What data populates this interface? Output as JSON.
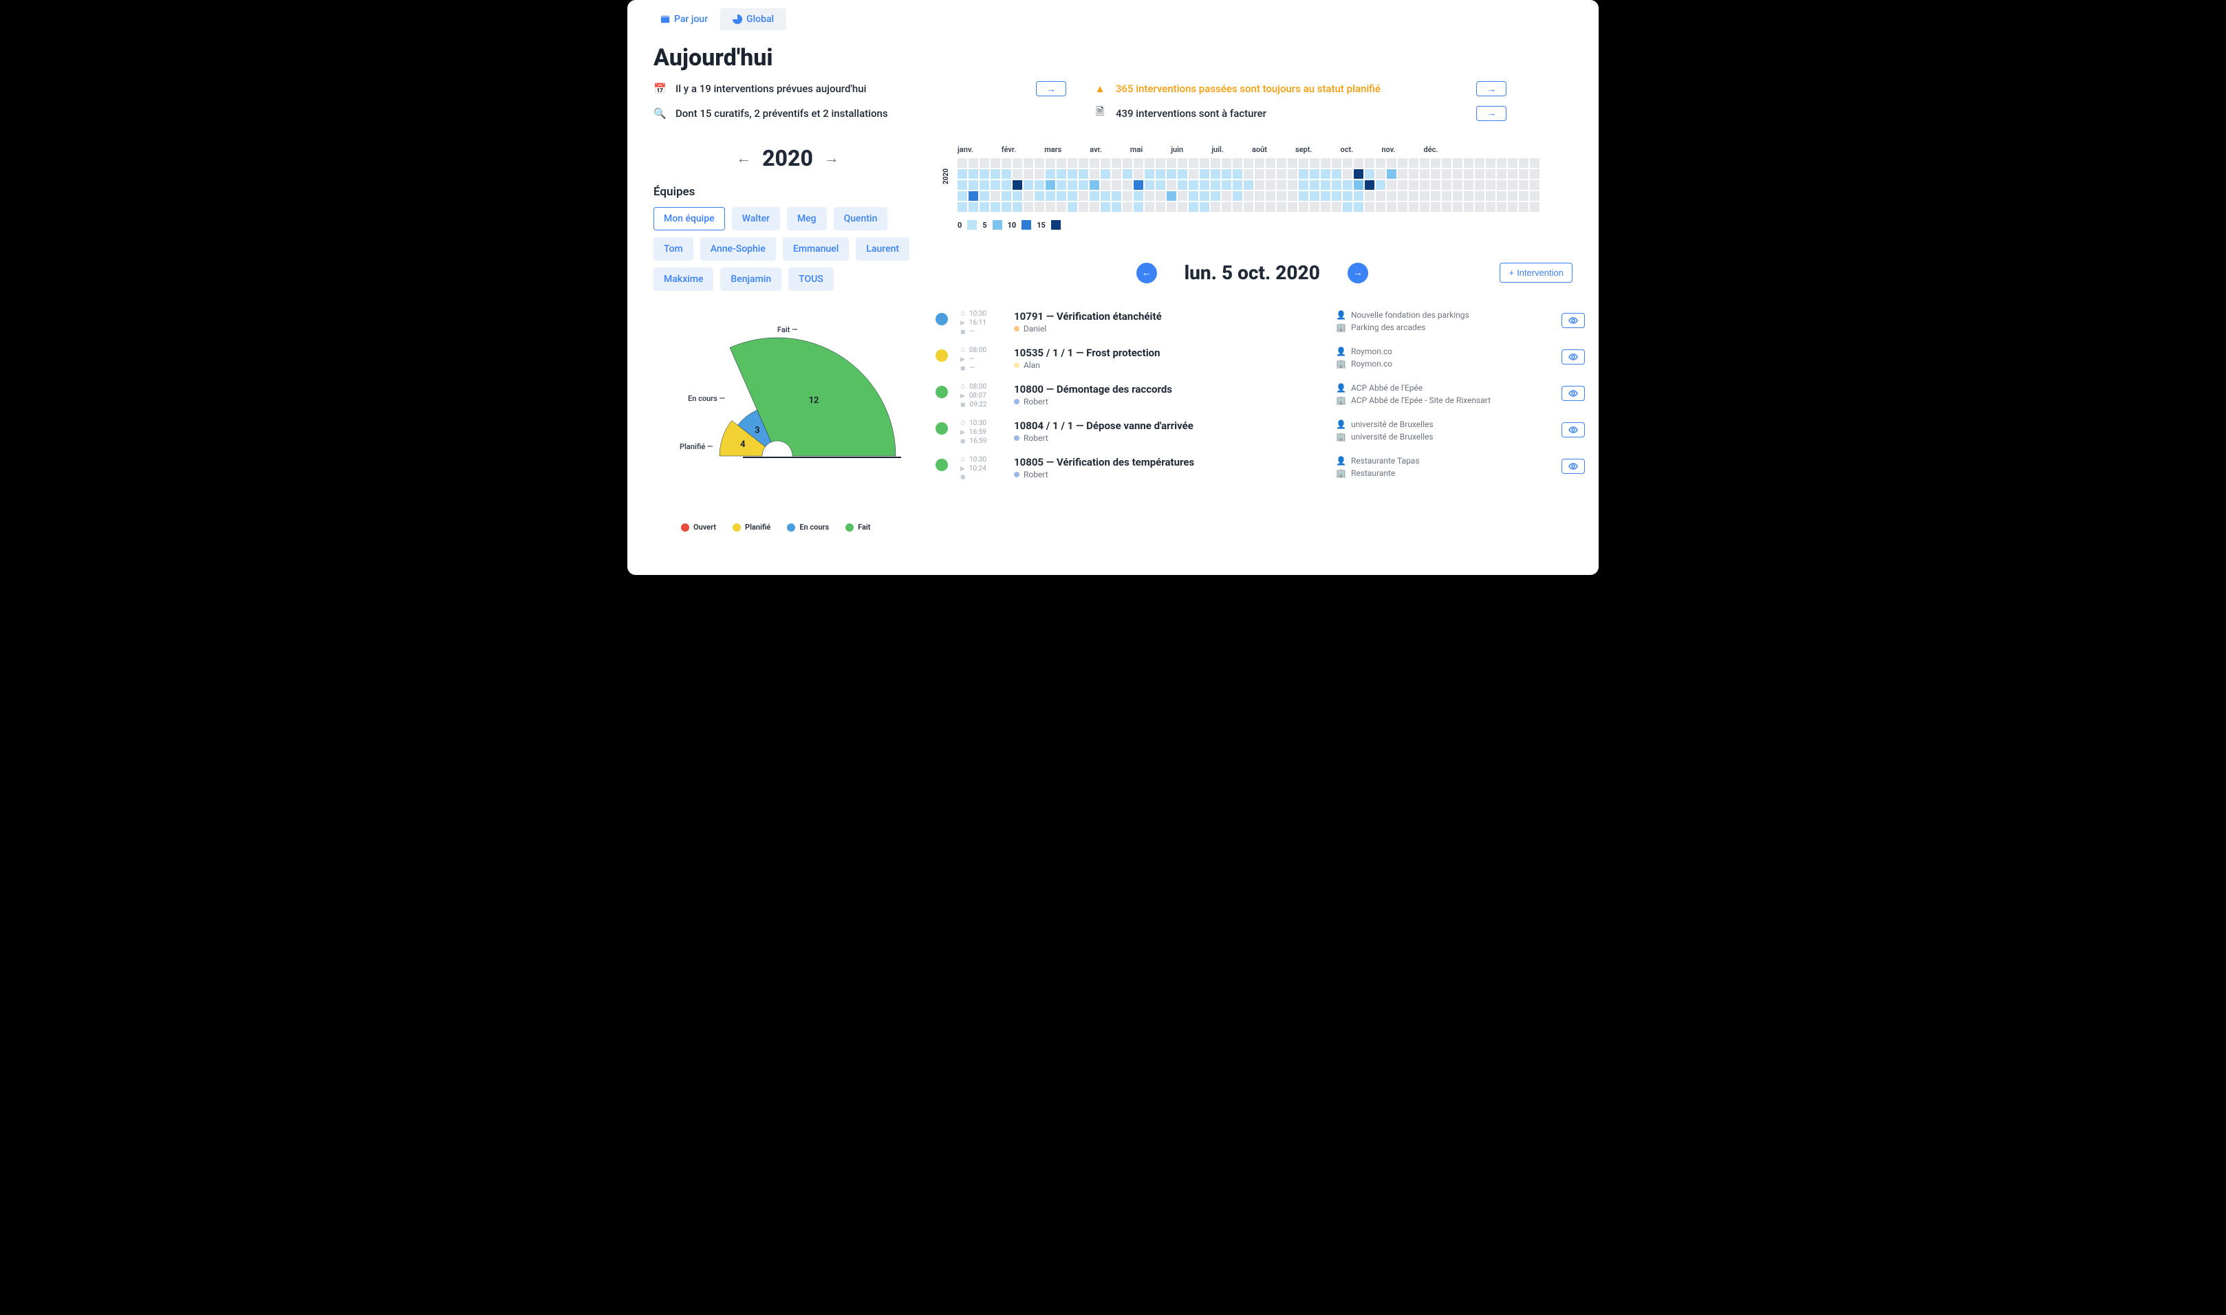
{
  "tabs": {
    "per_day": "Par jour",
    "global": "Global"
  },
  "title": "Aujourd'hui",
  "summary": {
    "planned": "Il y a 19 interventions prévues aujourd'hui",
    "detail": "Dont 15 curatifs, 2 préventifs et 2 installations",
    "past": "365 interventions passées sont toujours au statut planifié",
    "invoice": "439 interventions sont à facturer"
  },
  "year": "2020",
  "teams": {
    "label": "Équipes",
    "items": [
      "Mon équipe",
      "Walter",
      "Meg",
      "Quentin",
      "Tom",
      "Anne-Sophie",
      "Emmanuel",
      "Laurent",
      "Makxime",
      "Benjamin",
      "TOUS"
    ],
    "selected": 0
  },
  "pie": {
    "labels": {
      "fait": "Fait",
      "encours": "En cours",
      "planifie": "Planifié"
    },
    "values": {
      "fait": 12,
      "encours": 3,
      "planifie": 4
    },
    "colors": {
      "fait": "#57c062",
      "encours": "#4a9ee0",
      "planifie": "#f2d233",
      "ouvert": "#e84c3d"
    },
    "legend": [
      "Ouvert",
      "Planifié",
      "En cours",
      "Fait"
    ]
  },
  "heatmap": {
    "months": [
      "janv.",
      "févr.",
      "mars",
      "avr.",
      "mai",
      "juin",
      "juil.",
      "août",
      "sept.",
      "oct.",
      "nov.",
      "déc."
    ],
    "year_label": "2020",
    "legend": {
      "v0": "0",
      "v5": "5",
      "v10": "10",
      "v15": "15"
    },
    "colors": {
      "empty": "#e5e7eb",
      "c1": "#bde3f8",
      "c2": "#7cc3ee",
      "c3": "#2e7cd6",
      "c4": "#0d3b7a"
    },
    "cells": [
      [
        0,
        0,
        0,
        0,
        0,
        0,
        0,
        0,
        0,
        0,
        0,
        0,
        0,
        0,
        0,
        0,
        0,
        0,
        0,
        0,
        0,
        0,
        0,
        0,
        0,
        0,
        0,
        0,
        0,
        0,
        0,
        0,
        0,
        0,
        0,
        0,
        0,
        0,
        0,
        0,
        0,
        0,
        0,
        0,
        0,
        0,
        0,
        0,
        0,
        0,
        0,
        0,
        0
      ],
      [
        1,
        1,
        1,
        1,
        1,
        0,
        0,
        0,
        1,
        1,
        1,
        1,
        0,
        1,
        0,
        1,
        0,
        1,
        1,
        1,
        1,
        0,
        1,
        1,
        1,
        1,
        0,
        0,
        0,
        0,
        0,
        1,
        1,
        1,
        1,
        0,
        4,
        1,
        0,
        2,
        0,
        0,
        0,
        0,
        0,
        0,
        0,
        0,
        0,
        0,
        0,
        0,
        0
      ],
      [
        1,
        1,
        1,
        1,
        1,
        4,
        1,
        1,
        2,
        1,
        1,
        1,
        2,
        0,
        0,
        0,
        3,
        1,
        1,
        0,
        1,
        1,
        1,
        1,
        1,
        1,
        1,
        0,
        0,
        0,
        0,
        1,
        1,
        1,
        1,
        1,
        2,
        4,
        1,
        0,
        0,
        0,
        0,
        0,
        0,
        0,
        0,
        0,
        0,
        0,
        0,
        0,
        0
      ],
      [
        1,
        3,
        1,
        0,
        1,
        1,
        0,
        1,
        1,
        1,
        1,
        0,
        1,
        1,
        1,
        0,
        1,
        0,
        0,
        2,
        0,
        1,
        1,
        1,
        0,
        1,
        0,
        0,
        0,
        0,
        0,
        1,
        1,
        1,
        1,
        1,
        1,
        0,
        0,
        0,
        0,
        0,
        0,
        0,
        0,
        0,
        0,
        0,
        0,
        0,
        0,
        0,
        0
      ],
      [
        1,
        1,
        1,
        1,
        1,
        1,
        0,
        0,
        0,
        0,
        1,
        0,
        0,
        1,
        1,
        0,
        1,
        0,
        0,
        0,
        0,
        1,
        1,
        0,
        0,
        0,
        0,
        0,
        0,
        0,
        0,
        0,
        0,
        0,
        0,
        1,
        1,
        0,
        0,
        0,
        0,
        0,
        0,
        0,
        0,
        0,
        0,
        0,
        0,
        0,
        0,
        0,
        0
      ]
    ]
  },
  "date": {
    "title": "lun. 5 oct. 2020",
    "new_btn": "Intervention"
  },
  "status_colors": {
    "blue": "#4a9ee0",
    "yellow": "#f2d233",
    "green": "#57c062"
  },
  "interventions": [
    {
      "status": "blue",
      "times": [
        "10:30",
        "16:11",
        "—"
      ],
      "title": "10791 — Vérification étanchéité",
      "person": "Daniel",
      "person_dot": "#f9c784",
      "org": "Nouvelle fondation des parkings",
      "site": "Parking des arcades"
    },
    {
      "status": "yellow",
      "times": [
        "08:00",
        "—",
        "—"
      ],
      "title": "10535 / 1 / 1 — Frost protection",
      "person": "Alan",
      "person_dot": "#fde9a8",
      "org": "Roymon.co",
      "site": "Roymon.co"
    },
    {
      "status": "green",
      "times": [
        "08:00",
        "08:07",
        "09:22"
      ],
      "title": "10800 — Démontage des raccords",
      "person": "Robert",
      "person_dot": "#9bb6e8",
      "org": "ACP Abbé de l'Epée",
      "site": "ACP Abbé de l'Epée - Site de Rixensart"
    },
    {
      "status": "green",
      "times": [
        "10:30",
        "16:59",
        "16:59"
      ],
      "title": "10804 / 1 / 1 — Dépose vanne d'arrivée",
      "person": "Robert",
      "person_dot": "#9bb6e8",
      "org": "université de Bruxelles",
      "site": "université de Bruxelles"
    },
    {
      "status": "green",
      "times": [
        "10:30",
        "10:24",
        ""
      ],
      "title": "10805 — Vérification des températures",
      "person": "Robert",
      "person_dot": "#9bb6e8",
      "org": "Restaurante Tapas",
      "site": "Restaurante"
    }
  ]
}
